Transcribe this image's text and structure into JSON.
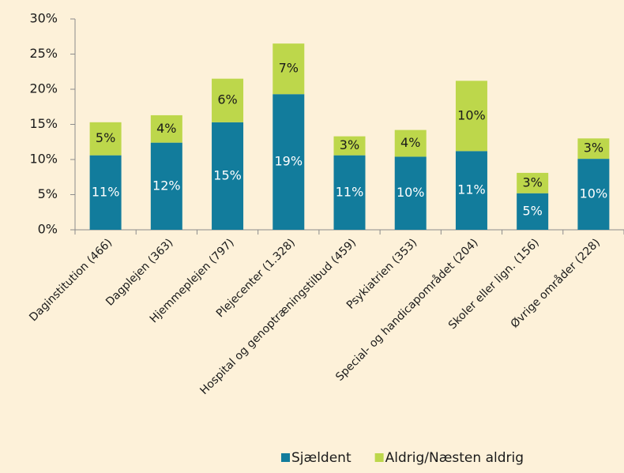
{
  "chart_data": {
    "type": "stacked_bar",
    "categories": [
      "Daginstitution (466)",
      "Dagplejen (363)",
      "Hjemmeplejen (797)",
      "Plejecenter (1.328)",
      "Hospital og genoptræningstilbud (459)",
      "Psykiatrien (353)",
      "Special- og handicapområdet (204)",
      "Skoler eller lign. (156)",
      "Øvrige områder (228)"
    ],
    "series": [
      {
        "name": "Sjældent",
        "color": "#127c9c",
        "values": [
          10.6,
          12.4,
          15.3,
          19.3,
          10.6,
          10.4,
          11.2,
          5.2,
          10.1
        ],
        "value_labels": [
          "11%",
          "12%",
          "15%",
          "19%",
          "11%",
          "10%",
          "11%",
          "5%",
          "10%"
        ],
        "label_color": "#ffffff"
      },
      {
        "name": "Aldrig/Næsten aldrig",
        "color": "#bdd74b",
        "values": [
          4.7,
          3.9,
          6.2,
          7.2,
          2.7,
          3.8,
          10.0,
          2.9,
          2.9
        ],
        "value_labels": [
          "5%",
          "4%",
          "6%",
          "7%",
          "3%",
          "4%",
          "10%",
          "3%",
          "3%"
        ],
        "label_color": "#1a1a1a"
      }
    ],
    "ylim": [
      0,
      30
    ],
    "yticks": [
      {
        "value": 0,
        "label": "0%"
      },
      {
        "value": 5,
        "label": "5%"
      },
      {
        "value": 10,
        "label": "10%"
      },
      {
        "value": 15,
        "label": "15%"
      },
      {
        "value": 20,
        "label": "20%"
      },
      {
        "value": 25,
        "label": "25%"
      },
      {
        "value": 30,
        "label": "30%"
      }
    ],
    "legend": "bottom"
  }
}
